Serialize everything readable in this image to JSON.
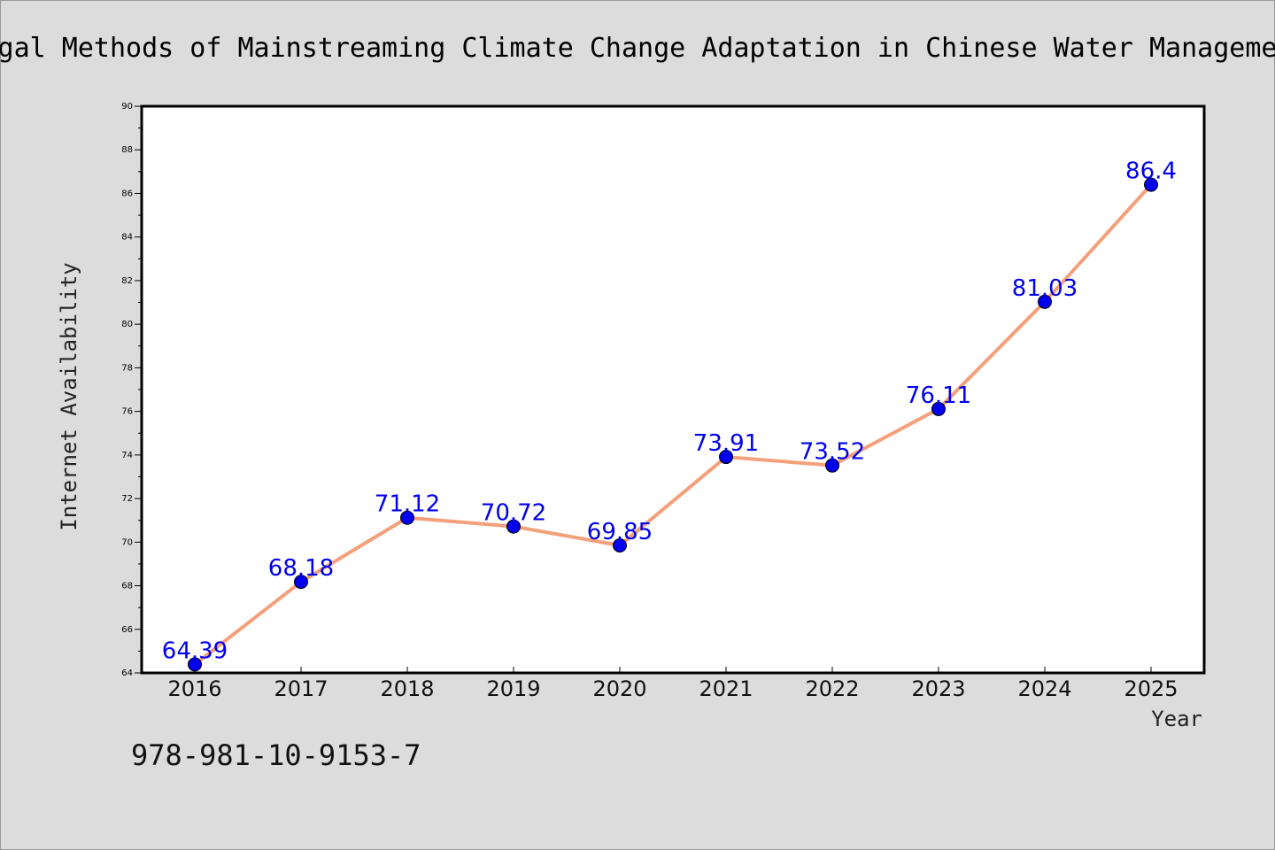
{
  "isbn": "978-981-10-9153-7",
  "chart_data": {
    "type": "line",
    "title": "Legal Methods of Mainstreaming Climate Change Adaptation in Chinese Water Management",
    "xlabel": "Year",
    "ylabel": "Internet Availability",
    "x": [
      "2016",
      "2017",
      "2018",
      "2019",
      "2020",
      "2021",
      "2022",
      "2023",
      "2024",
      "2025"
    ],
    "series": [
      {
        "values": [
          64.39,
          68.18,
          71.12,
          70.72,
          69.85,
          73.91,
          73.52,
          76.11,
          81.03,
          86.4
        ],
        "labels": [
          "64.39",
          "68.18",
          "71.12",
          "70.72",
          "69.85",
          "73.91",
          "73.52",
          "76.11",
          "81.03",
          "86.4"
        ],
        "line_color": "#f4a07a",
        "marker_color": "#0000ee",
        "label_color": "#0000ee"
      }
    ],
    "ylim": [
      64,
      90
    ],
    "yticks": [
      "64",
      "66",
      "68",
      "70",
      "72",
      "74",
      "76",
      "78",
      "80",
      "82",
      "84",
      "86",
      "88",
      "90"
    ],
    "grid": false,
    "legend": false
  }
}
